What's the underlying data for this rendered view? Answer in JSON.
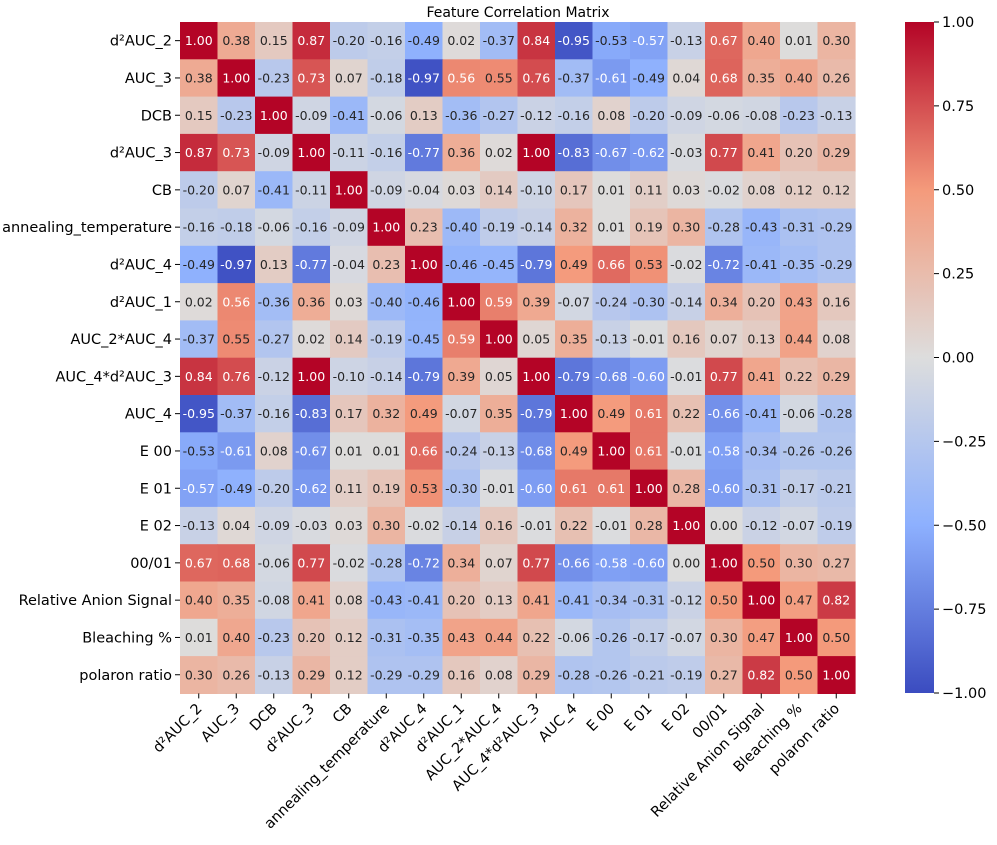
{
  "chart_data": {
    "type": "heatmap",
    "title": "Feature Correlation Matrix",
    "labels": [
      "d²AUC_2",
      "AUC_3",
      "DCB",
      "d²AUC_3",
      "CB",
      "annealing_temperature",
      "d²AUC_4",
      "d²AUC_1",
      "AUC_2*AUC_4",
      "AUC_4*d²AUC_3",
      "AUC_4",
      "E 00",
      "E 01",
      "E 02",
      "00/01",
      "Relative Anion Signal",
      "Bleaching %",
      "polaron ratio"
    ],
    "values": [
      [
        1.0,
        0.38,
        0.15,
        0.87,
        -0.2,
        -0.16,
        -0.49,
        0.02,
        -0.37,
        0.84,
        -0.95,
        -0.53,
        -0.57,
        -0.13,
        0.67,
        0.4,
        0.01,
        0.3
      ],
      [
        0.38,
        1.0,
        -0.23,
        0.73,
        0.07,
        -0.18,
        -0.97,
        0.56,
        0.55,
        0.76,
        -0.37,
        -0.61,
        -0.49,
        0.04,
        0.68,
        0.35,
        0.4,
        0.26
      ],
      [
        0.15,
        -0.23,
        1.0,
        -0.09,
        -0.41,
        -0.06,
        0.13,
        -0.36,
        -0.27,
        -0.12,
        -0.16,
        0.08,
        -0.2,
        -0.09,
        -0.06,
        -0.08,
        -0.23,
        -0.13
      ],
      [
        0.87,
        0.73,
        -0.09,
        1.0,
        -0.11,
        -0.16,
        -0.77,
        0.36,
        0.02,
        1.0,
        -0.83,
        -0.67,
        -0.62,
        -0.03,
        0.77,
        0.41,
        0.2,
        0.29
      ],
      [
        -0.2,
        0.07,
        -0.41,
        -0.11,
        1.0,
        -0.09,
        -0.04,
        0.03,
        0.14,
        -0.1,
        0.17,
        0.01,
        0.11,
        0.03,
        -0.02,
        0.08,
        0.12,
        0.12
      ],
      [
        -0.16,
        -0.18,
        -0.06,
        -0.16,
        -0.09,
        1.0,
        0.23,
        -0.4,
        -0.19,
        -0.14,
        0.32,
        0.01,
        0.19,
        0.3,
        -0.28,
        -0.43,
        -0.31,
        -0.29
      ],
      [
        -0.49,
        -0.97,
        0.13,
        -0.77,
        -0.04,
        0.23,
        1.0,
        -0.46,
        -0.45,
        -0.79,
        0.49,
        0.66,
        0.53,
        -0.02,
        -0.72,
        -0.41,
        -0.35,
        -0.29
      ],
      [
        0.02,
        0.56,
        -0.36,
        0.36,
        0.03,
        -0.4,
        -0.46,
        1.0,
        0.59,
        0.39,
        -0.07,
        -0.24,
        -0.3,
        -0.14,
        0.34,
        0.2,
        0.43,
        0.16
      ],
      [
        -0.37,
        0.55,
        -0.27,
        0.02,
        0.14,
        -0.19,
        -0.45,
        0.59,
        1.0,
        0.05,
        0.35,
        -0.13,
        -0.01,
        0.16,
        0.07,
        0.13,
        0.44,
        0.08
      ],
      [
        0.84,
        0.76,
        -0.12,
        1.0,
        -0.1,
        -0.14,
        -0.79,
        0.39,
        0.05,
        1.0,
        -0.79,
        -0.68,
        -0.6,
        -0.01,
        0.77,
        0.41,
        0.22,
        0.29
      ],
      [
        -0.95,
        -0.37,
        -0.16,
        -0.83,
        0.17,
        0.32,
        0.49,
        -0.07,
        0.35,
        -0.79,
        1.0,
        0.49,
        0.61,
        0.22,
        -0.66,
        -0.41,
        -0.06,
        -0.28
      ],
      [
        -0.53,
        -0.61,
        0.08,
        -0.67,
        0.01,
        0.01,
        0.66,
        -0.24,
        -0.13,
        -0.68,
        0.49,
        1.0,
        0.61,
        -0.01,
        -0.58,
        -0.34,
        -0.26,
        -0.26
      ],
      [
        -0.57,
        -0.49,
        -0.2,
        -0.62,
        0.11,
        0.19,
        0.53,
        -0.3,
        -0.01,
        -0.6,
        0.61,
        0.61,
        1.0,
        0.28,
        -0.6,
        -0.31,
        -0.17,
        -0.21
      ],
      [
        -0.13,
        0.04,
        -0.09,
        -0.03,
        0.03,
        0.3,
        -0.02,
        -0.14,
        0.16,
        -0.01,
        0.22,
        -0.01,
        0.28,
        1.0,
        0.0,
        -0.12,
        -0.07,
        -0.19
      ],
      [
        0.67,
        0.68,
        -0.06,
        0.77,
        -0.02,
        -0.28,
        -0.72,
        0.34,
        0.07,
        0.77,
        -0.66,
        -0.58,
        -0.6,
        0.0,
        1.0,
        0.5,
        0.3,
        0.27
      ],
      [
        0.4,
        0.35,
        -0.08,
        0.41,
        0.08,
        -0.43,
        -0.41,
        0.2,
        0.13,
        0.41,
        -0.41,
        -0.34,
        -0.31,
        -0.12,
        0.5,
        1.0,
        0.47,
        0.82
      ],
      [
        0.01,
        0.4,
        -0.23,
        0.2,
        0.12,
        -0.31,
        -0.35,
        0.43,
        0.44,
        0.22,
        -0.06,
        -0.26,
        -0.17,
        -0.07,
        0.3,
        0.47,
        1.0,
        0.5
      ],
      [
        0.3,
        0.26,
        -0.13,
        0.29,
        0.12,
        -0.29,
        -0.29,
        0.16,
        0.08,
        0.29,
        -0.28,
        -0.26,
        -0.21,
        -0.19,
        0.27,
        0.82,
        0.5,
        1.0
      ]
    ],
    "value_range": [
      -1.0,
      1.0
    ],
    "colormap": "coolwarm",
    "colorbar_ticks": [
      1.0,
      0.75,
      0.5,
      0.25,
      0.0,
      -0.25,
      -0.5,
      -0.75,
      -1.0
    ],
    "colorbar_tick_labels": [
      "1.00",
      "0.75",
      "0.50",
      "0.25",
      "0.00",
      "−0.25",
      "−0.50",
      "−0.75",
      "−1.00"
    ],
    "colors": {
      "low": "#3b4cc0",
      "mid": "#dddddd",
      "high": "#b40426",
      "text_dark": "#262626",
      "text_light": "#ffffff"
    }
  }
}
